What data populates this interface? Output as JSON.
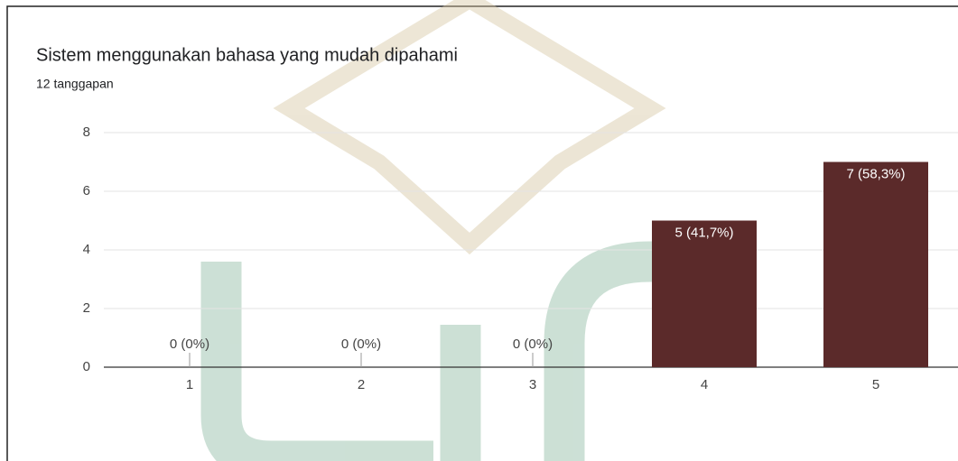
{
  "chart_data": {
    "type": "bar",
    "title": "Sistem menggunakan bahasa yang mudah dipahami",
    "subtitle": "12 tanggapan",
    "categories": [
      "1",
      "2",
      "3",
      "4",
      "5"
    ],
    "values": [
      0,
      0,
      0,
      5,
      7
    ],
    "value_labels": [
      "0 (0%)",
      "0 (0%)",
      "0 (0%)",
      "5 (41,7%)",
      "7 (58,3%)"
    ],
    "color": "#5b2a2a",
    "ylim": [
      0,
      8
    ],
    "yticks": [
      0,
      2,
      4,
      6,
      8
    ],
    "grid": true
  }
}
